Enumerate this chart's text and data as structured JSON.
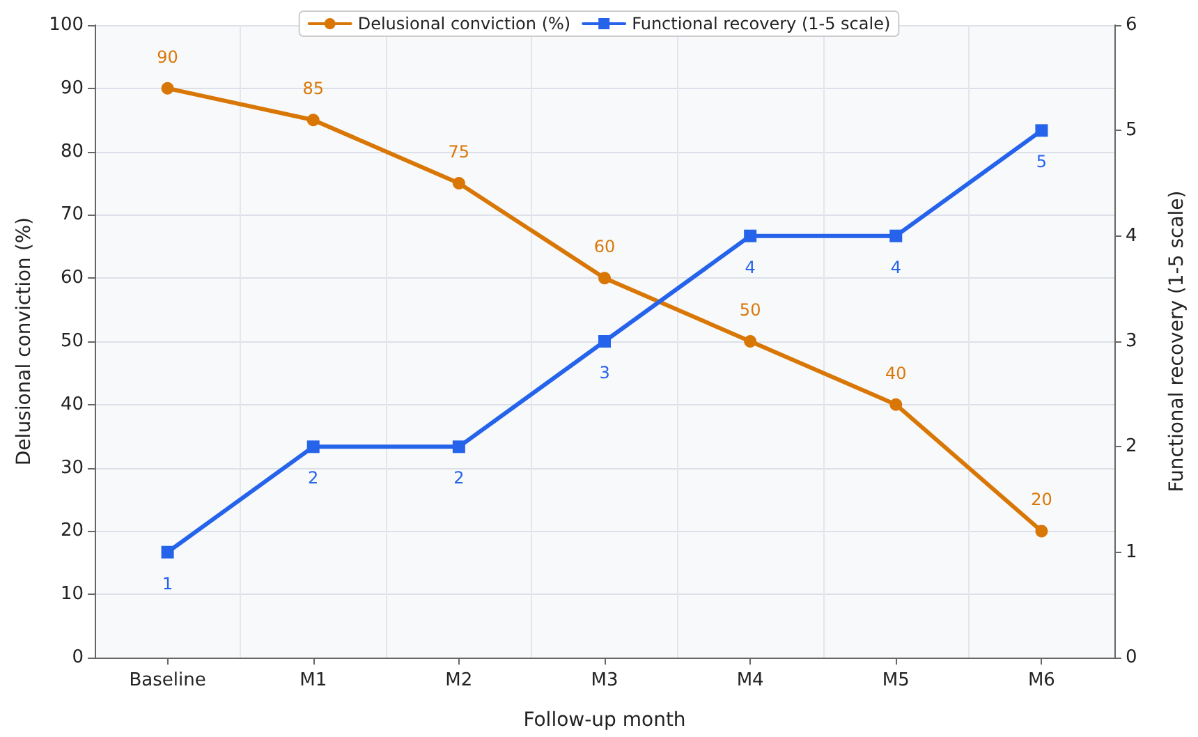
{
  "chart_data": {
    "type": "line",
    "xlabel": "Follow-up month",
    "ylabel": "Delusional conviction (%)",
    "y2label": "Functional recovery (1-5 scale)",
    "categories": [
      "Baseline",
      "M1",
      "M2",
      "M3",
      "M4",
      "M5",
      "M6"
    ],
    "series": [
      {
        "name": "Delusional conviction (%)",
        "color": "#d97706",
        "marker": "circle",
        "values": [
          90,
          85,
          75,
          60,
          50,
          40,
          20
        ]
      },
      {
        "name": "Functional recovery (1-5 scale)",
        "color": "#2563eb",
        "marker": "square",
        "axis": "y2",
        "values": [
          1,
          2,
          2,
          3,
          4,
          4,
          5
        ]
      }
    ],
    "ylim": [
      0,
      100
    ],
    "yticks": [
      0,
      10,
      20,
      30,
      40,
      50,
      60,
      70,
      80,
      90,
      100
    ],
    "y2lim": [
      0,
      6
    ],
    "y2ticks": [
      0,
      1,
      2,
      3,
      4,
      5,
      6
    ],
    "grid": true,
    "legend": "top",
    "data_labels": true,
    "line_style": "solid"
  }
}
